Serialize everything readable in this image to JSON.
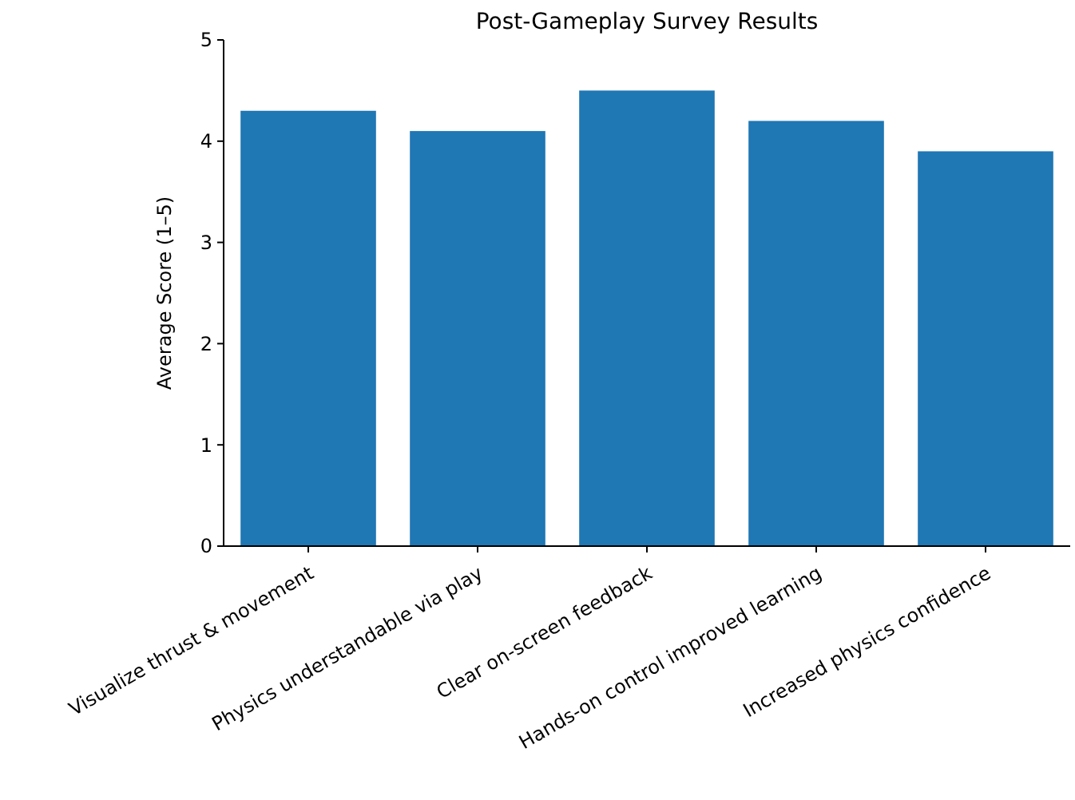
{
  "chart_data": {
    "type": "bar",
    "title": "Post-Gameplay Survey Results",
    "ylabel": "Average Score (1–5)",
    "categories": [
      "Visualize thrust & movement",
      "Physics understandable via play",
      "Clear on-screen feedback",
      "Hands-on control improved learning",
      "Increased physics confidence"
    ],
    "values": [
      4.3,
      4.1,
      4.5,
      4.2,
      3.9
    ],
    "color": "#1f77b4",
    "ylim": [
      0,
      5
    ],
    "yticks": [
      0,
      1,
      2,
      3,
      4,
      5
    ],
    "grid": false
  }
}
